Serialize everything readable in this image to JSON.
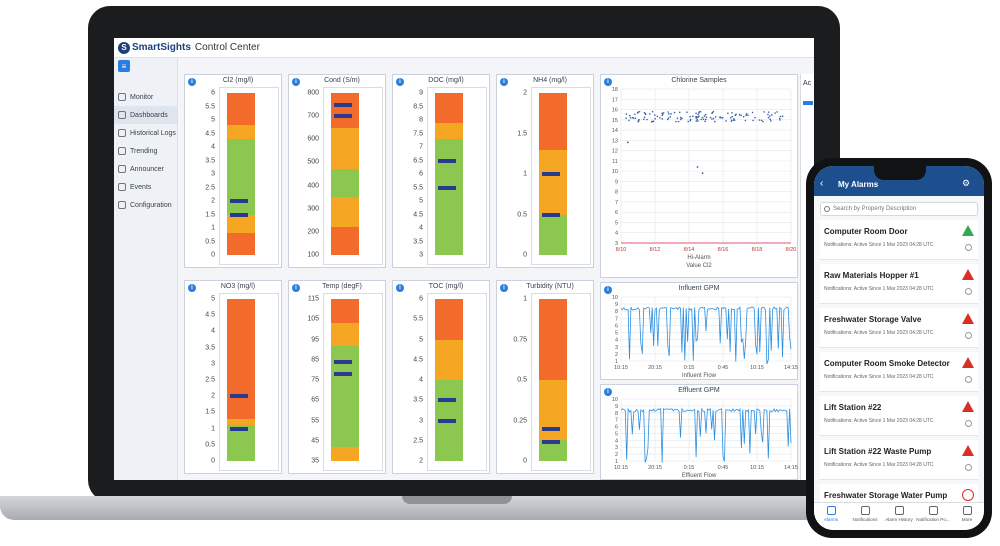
{
  "app": {
    "logo_mark": "S",
    "logo_name": "SmartSights",
    "logo_sub": "Control Center",
    "menu_glyph": "≡"
  },
  "sidebar": {
    "items": [
      {
        "label": "Monitor",
        "icon": "monitor-icon"
      },
      {
        "label": "Dashboards",
        "icon": "dashboard-icon",
        "active": true
      },
      {
        "label": "Historical Logs",
        "icon": "logs-icon"
      },
      {
        "label": "Trending",
        "icon": "trend-icon"
      },
      {
        "label": "Announcer",
        "icon": "announcer-icon"
      },
      {
        "label": "Events",
        "icon": "events-icon"
      },
      {
        "label": "Configuration",
        "icon": "config-icon"
      }
    ]
  },
  "gauges": [
    {
      "title": "Cl2 (mg/l)",
      "ticks": [
        "6",
        "5.5",
        "5",
        "4.5",
        "4",
        "3.5",
        "3",
        "2.5",
        "2",
        "1.5",
        "1",
        "0.5",
        "0"
      ],
      "min": 0,
      "max": 6,
      "bands": [
        {
          "from": 0,
          "to": 0.8,
          "color": "#f26b2a"
        },
        {
          "from": 0.8,
          "to": 1.5,
          "color": "#f5a623"
        },
        {
          "from": 1.5,
          "to": 4.3,
          "color": "#8cc850"
        },
        {
          "from": 4.3,
          "to": 4.8,
          "color": "#f5a623"
        },
        {
          "from": 4.8,
          "to": 6,
          "color": "#f26b2a"
        }
      ],
      "markers": [
        2.0,
        1.5
      ]
    },
    {
      "title": "Cond (S/m)",
      "ticks": [
        "800",
        "700",
        "600",
        "500",
        "400",
        "300",
        "200",
        "100"
      ],
      "min": 100,
      "max": 800,
      "bands": [
        {
          "from": 100,
          "to": 220,
          "color": "#f26b2a"
        },
        {
          "from": 220,
          "to": 350,
          "color": "#f5a623"
        },
        {
          "from": 350,
          "to": 470,
          "color": "#8cc850"
        },
        {
          "from": 470,
          "to": 650,
          "color": "#f5a623"
        },
        {
          "from": 650,
          "to": 800,
          "color": "#f26b2a"
        }
      ],
      "markers": [
        750,
        700
      ]
    },
    {
      "title": "DOC (mg/l)",
      "ticks": [
        "9",
        "8.5",
        "8",
        "7.5",
        "7",
        "6.5",
        "6",
        "5.5",
        "5",
        "4.5",
        "4",
        "3.5",
        "3"
      ],
      "min": 3,
      "max": 9,
      "bands": [
        {
          "from": 3,
          "to": 5.2,
          "color": "#8cc850"
        },
        {
          "from": 5.2,
          "to": 7.3,
          "color": "#8cc850"
        },
        {
          "from": 7.3,
          "to": 7.9,
          "color": "#f5a623"
        },
        {
          "from": 7.9,
          "to": 9,
          "color": "#f26b2a"
        }
      ],
      "markers": [
        6.5,
        5.5
      ]
    },
    {
      "title": "NH4 (mg/l)",
      "ticks": [
        "2",
        "1.5",
        "1",
        "0.5",
        "0"
      ],
      "min": 0,
      "max": 2,
      "bands": [
        {
          "from": 0,
          "to": 0.5,
          "color": "#8cc850"
        },
        {
          "from": 0.5,
          "to": 0.65,
          "color": "#f5a623"
        },
        {
          "from": 0.65,
          "to": 1.3,
          "color": "#f5a623"
        },
        {
          "from": 1.3,
          "to": 2,
          "color": "#f26b2a"
        }
      ],
      "markers": [
        1.0,
        0.5
      ]
    },
    {
      "title": "NO3 (mg/l)",
      "ticks": [
        "5",
        "4.5",
        "4",
        "3.5",
        "3",
        "2.5",
        "2",
        "1.5",
        "1",
        "0.5",
        "0"
      ],
      "min": 0,
      "max": 5,
      "bands": [
        {
          "from": 0,
          "to": 1.1,
          "color": "#8cc850"
        },
        {
          "from": 1.1,
          "to": 1.3,
          "color": "#f5a623"
        },
        {
          "from": 1.3,
          "to": 5,
          "color": "#f26b2a"
        }
      ],
      "markers": [
        2.0,
        1.0
      ]
    },
    {
      "title": "Temp (degF)",
      "ticks": [
        "115",
        "105",
        "95",
        "85",
        "75",
        "65",
        "55",
        "45",
        "35"
      ],
      "min": 35,
      "max": 115,
      "bands": [
        {
          "from": 35,
          "to": 42,
          "color": "#f5a623"
        },
        {
          "from": 42,
          "to": 92,
          "color": "#8cc850"
        },
        {
          "from": 92,
          "to": 103,
          "color": "#f5a623"
        },
        {
          "from": 103,
          "to": 115,
          "color": "#f26b2a"
        }
      ],
      "markers": [
        84,
        78
      ]
    },
    {
      "title": "TOC (mg/l)",
      "ticks": [
        "6",
        "5.5",
        "5",
        "4.5",
        "4",
        "3.5",
        "3",
        "2.5",
        "2"
      ],
      "min": 2,
      "max": 6,
      "bands": [
        {
          "from": 2,
          "to": 4.0,
          "color": "#8cc850"
        },
        {
          "from": 4.0,
          "to": 5.0,
          "color": "#f5a623"
        },
        {
          "from": 5.0,
          "to": 6,
          "color": "#f26b2a"
        }
      ],
      "markers": [
        3.5,
        3.0
      ]
    },
    {
      "title": "Turbidity (NTU)",
      "ticks": [
        "1",
        "0.75",
        "0.5",
        "0.25",
        "0"
      ],
      "min": 0,
      "max": 1,
      "bands": [
        {
          "from": 0,
          "to": 0.13,
          "color": "#8cc850"
        },
        {
          "from": 0.13,
          "to": 0.5,
          "color": "#f5a623"
        },
        {
          "from": 0.5,
          "to": 1,
          "color": "#f26b2a"
        }
      ],
      "markers": [
        0.2,
        0.12
      ]
    }
  ],
  "chart_data": [
    {
      "type": "scatter",
      "title": "Chlorine Samples",
      "x_ticks": [
        "8/10",
        "8/12",
        "8/14",
        "8/16",
        "8/18",
        "8/20"
      ],
      "y_ticks": [
        "18",
        "17",
        "16",
        "15",
        "14",
        "13",
        "12",
        "11",
        "10",
        "9",
        "8",
        "7",
        "6",
        "5",
        "4",
        "3"
      ],
      "legend": [
        "Hi-Alarm",
        "Value Cl2"
      ],
      "series": [
        {
          "values_band": [
            14.8,
            15.8
          ],
          "outliers": [
            {
              "x": 0.45,
              "y": 10.4
            },
            {
              "x": 0.48,
              "y": 9.8
            },
            {
              "x": 0.04,
              "y": 12.8
            }
          ]
        }
      ]
    },
    {
      "type": "line",
      "title": "Influent GPM",
      "x_ticks": [
        "10:15",
        "20:15",
        "0:15",
        "0:45",
        "10:15",
        "14:15"
      ],
      "y_ticks": [
        "10",
        "9",
        "8",
        "7",
        "6",
        "5",
        "4",
        "3",
        "2",
        "1"
      ],
      "legend": [
        "Influent Flow"
      ]
    },
    {
      "type": "line",
      "title": "Effluent GPM",
      "x_ticks": [
        "10:15",
        "20:15",
        "0:15",
        "0:45",
        "10:15",
        "14:15"
      ],
      "y_ticks": [
        "10",
        "9",
        "8",
        "7",
        "6",
        "5",
        "4",
        "3",
        "2",
        "1"
      ],
      "legend": [
        "Effluent Flow"
      ]
    }
  ],
  "right_panel": {
    "head": "Ac"
  },
  "phone": {
    "title": "My Alarms",
    "back_glyph": "‹",
    "gear_glyph": "⚙",
    "search_placeholder": "Search by Property Description",
    "alarms": [
      {
        "name": "Computer Room Door",
        "sub": "Notifications: Active Since 1 Mar 2023 04:28 UTC",
        "status": "warning-green"
      },
      {
        "name": "Raw Materials Hopper #1",
        "sub": "Notifications: Active Since 1 Mar 2023 04:28 UTC",
        "status": "warning-red"
      },
      {
        "name": "Freshwater Storage Valve",
        "sub": "Notifications: Active Since 1 Mar 2023 04:28 UTC",
        "status": "warning-red"
      },
      {
        "name": "Computer Room Smoke Detector",
        "sub": "Notifications: Active Since 1 Mar 2023 04:28 UTC",
        "status": "warning-red"
      },
      {
        "name": "Lift Station #22",
        "sub": "Notifications: Active Since 1 Mar 2023 04:28 UTC",
        "status": "warning-red"
      },
      {
        "name": "Lift Station #22 Waste Pump",
        "sub": "Notifications: Active Since 1 Mar 2023 04:28 UTC",
        "status": "warning-red"
      },
      {
        "name": "Freshwater Storage Water Pump",
        "sub": "",
        "status": "acknowledged"
      }
    ],
    "tabs": [
      {
        "label": "Alarms",
        "active": true
      },
      {
        "label": "Notifications"
      },
      {
        "label": "Alarm History"
      },
      {
        "label": "Notification Po..."
      },
      {
        "label": "More"
      }
    ]
  }
}
